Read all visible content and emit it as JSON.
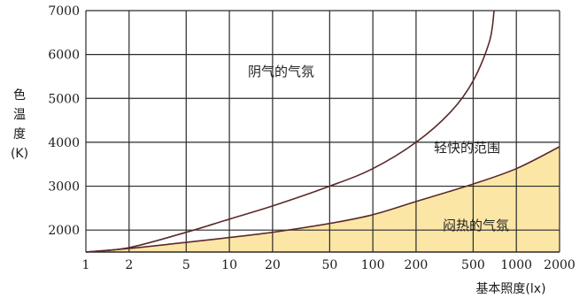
{
  "chart_data": {
    "type": "area",
    "xscale": "log",
    "xlim": [
      1,
      2000
    ],
    "ylim": [
      1500,
      7000
    ],
    "x_ticks": [
      1,
      2,
      5,
      10,
      20,
      50,
      100,
      200,
      500,
      1000,
      2000
    ],
    "x_tick_labels": [
      "1",
      "2",
      "5",
      "10",
      "20",
      "50",
      "100",
      "200",
      "500",
      "1000",
      "2000"
    ],
    "y_ticks": [
      2000,
      3000,
      4000,
      5000,
      6000,
      7000
    ],
    "y_tick_labels": [
      "2000",
      "3000",
      "4000",
      "5000",
      "6000",
      "7000"
    ],
    "xlabel": "基本照度(lx)",
    "ylabel_chars": [
      "色",
      "温",
      "度",
      "(K)"
    ],
    "grid": true,
    "upper_boundary": {
      "x": [
        1,
        2,
        5,
        10,
        20,
        50,
        100,
        200,
        350,
        500,
        650,
        700
      ],
      "y": [
        1500,
        1600,
        1950,
        2250,
        2550,
        3000,
        3400,
        4000,
        4700,
        5400,
        6300,
        7000
      ]
    },
    "lower_boundary": {
      "x": [
        1,
        2,
        5,
        10,
        20,
        50,
        100,
        200,
        500,
        1000,
        2000
      ],
      "y": [
        1500,
        1580,
        1720,
        1830,
        1950,
        2150,
        2350,
        2650,
        3050,
        3400,
        3900
      ]
    },
    "region_labels": [
      "阴气的气氛",
      "轻快的范围",
      "闷热的气氛"
    ],
    "fill_color": "#fbe6a6",
    "curve_color": "#5a2a2a",
    "grid_color": "#2a2a2a"
  }
}
